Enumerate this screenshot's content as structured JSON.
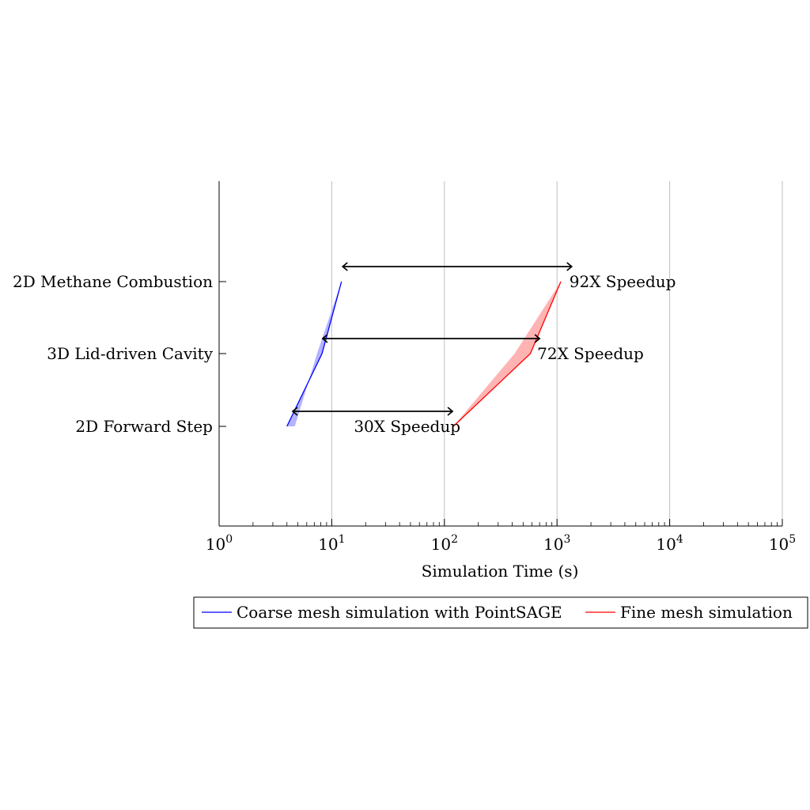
{
  "chart_data": {
    "type": "line",
    "title": "",
    "xlabel": "Simulation Time (s)",
    "ylabel": "",
    "x_scale": "log",
    "xlim": [
      1,
      100000
    ],
    "x_ticks": [
      {
        "value": 1,
        "base": "10",
        "exp": "0"
      },
      {
        "value": 10,
        "base": "10",
        "exp": "1"
      },
      {
        "value": 100,
        "base": "10",
        "exp": "2"
      },
      {
        "value": 1000,
        "base": "10",
        "exp": "3"
      },
      {
        "value": 10000,
        "base": "10",
        "exp": "4"
      },
      {
        "value": 100000,
        "base": "10",
        "exp": "5"
      }
    ],
    "vertical_grid": true,
    "categories": [
      "2D Forward Step",
      "3D Lid-driven Cavity",
      "2D Methane Combustion"
    ],
    "series": [
      {
        "name": "Coarse mesh simulation with PointSAGE",
        "color": "#0000ff",
        "fill_color": "#b3b3ff",
        "values": [
          4,
          8.2,
          12.2
        ],
        "band_upper": [
          4.7,
          7.4,
          12.2
        ]
      },
      {
        "name": "Fine mesh simulation",
        "color": "#ff0000",
        "fill_color": "#ffb3b3",
        "values": [
          120,
          580,
          1080
        ],
        "band_upper": [
          120,
          420,
          1080
        ]
      }
    ],
    "annotations": [
      {
        "category": "2D Forward Step",
        "from": 4.5,
        "to": 118,
        "label": "30X Speedup",
        "label_position": "left"
      },
      {
        "category": "3D Lid-driven Cavity",
        "from": 8.3,
        "to": 700,
        "label": "72X Speedup",
        "label_position": "right"
      },
      {
        "category": "2D Methane Combustion",
        "from": 12.5,
        "to": 1350,
        "label": "92X Speedup",
        "label_position": "right"
      }
    ],
    "legend_position": "bottom"
  }
}
